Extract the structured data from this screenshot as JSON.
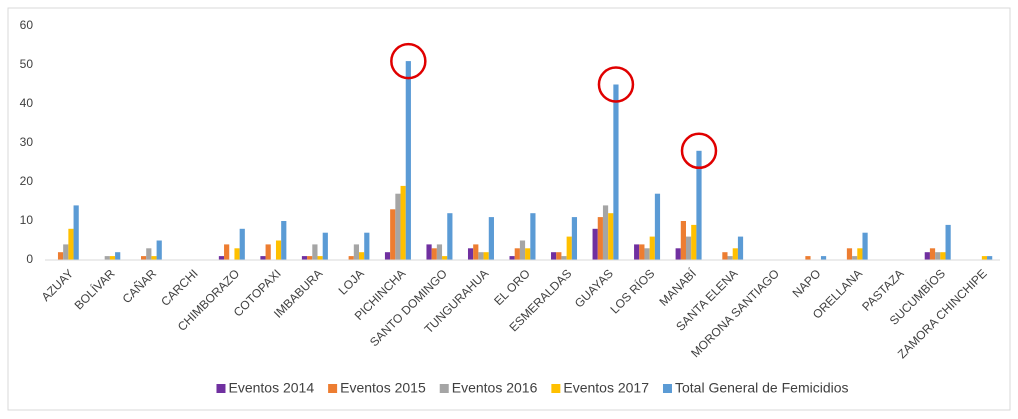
{
  "chart_data": {
    "type": "bar",
    "categories": [
      "AZUAY",
      "BOLÍVAR",
      "CAÑAR",
      "CARCHI",
      "CHIMBORAZO",
      "COTOPAXI",
      "IMBABURA",
      "LOJA",
      "PICHINCHA",
      "SANTO DOMINGO",
      "TUNGURAHUA",
      "EL ORO",
      "ESMERALDAS",
      "GUAYAS",
      "LOS RÍOS",
      "MANABÍ",
      "SANTA ELENA",
      "MORONA SANTIAGO",
      "NAPO",
      "ORELLANA",
      "PASTAZA",
      "SUCUMBÍOS",
      "ZAMORA CHINCHIPE"
    ],
    "series": [
      {
        "name": "Eventos 2014",
        "color": "#7030a0",
        "values": [
          0,
          0,
          0,
          0,
          1,
          1,
          1,
          0,
          2,
          4,
          3,
          1,
          2,
          8,
          4,
          3,
          0,
          0,
          0,
          0,
          0,
          2,
          0
        ]
      },
      {
        "name": "Eventos 2015",
        "color": "#ed7d31",
        "values": [
          2,
          0,
          1,
          0,
          4,
          4,
          1,
          1,
          13,
          3,
          4,
          3,
          2,
          11,
          4,
          10,
          2,
          0,
          1,
          3,
          0,
          3,
          0
        ]
      },
      {
        "name": "Eventos 2016",
        "color": "#a5a5a5",
        "values": [
          4,
          1,
          3,
          0,
          0,
          0,
          4,
          4,
          17,
          4,
          2,
          5,
          1,
          14,
          3,
          6,
          1,
          0,
          0,
          1,
          0,
          2,
          0
        ]
      },
      {
        "name": "Eventos 2017",
        "color": "#ffc000",
        "values": [
          8,
          1,
          1,
          0,
          3,
          5,
          1,
          2,
          19,
          1,
          2,
          3,
          6,
          12,
          6,
          9,
          3,
          0,
          0,
          3,
          0,
          2,
          1
        ]
      },
      {
        "name": "Total General de Femicidios",
        "color": "#5b9bd5",
        "values": [
          14,
          2,
          5,
          0,
          8,
          10,
          7,
          7,
          51,
          12,
          11,
          12,
          11,
          45,
          17,
          28,
          6,
          0,
          1,
          7,
          0,
          9,
          1
        ]
      }
    ],
    "ylim": [
      0,
      60
    ],
    "yticks": [
      0,
      10,
      20,
      30,
      40,
      50,
      60
    ],
    "grid": false,
    "legend": "bottom"
  }
}
